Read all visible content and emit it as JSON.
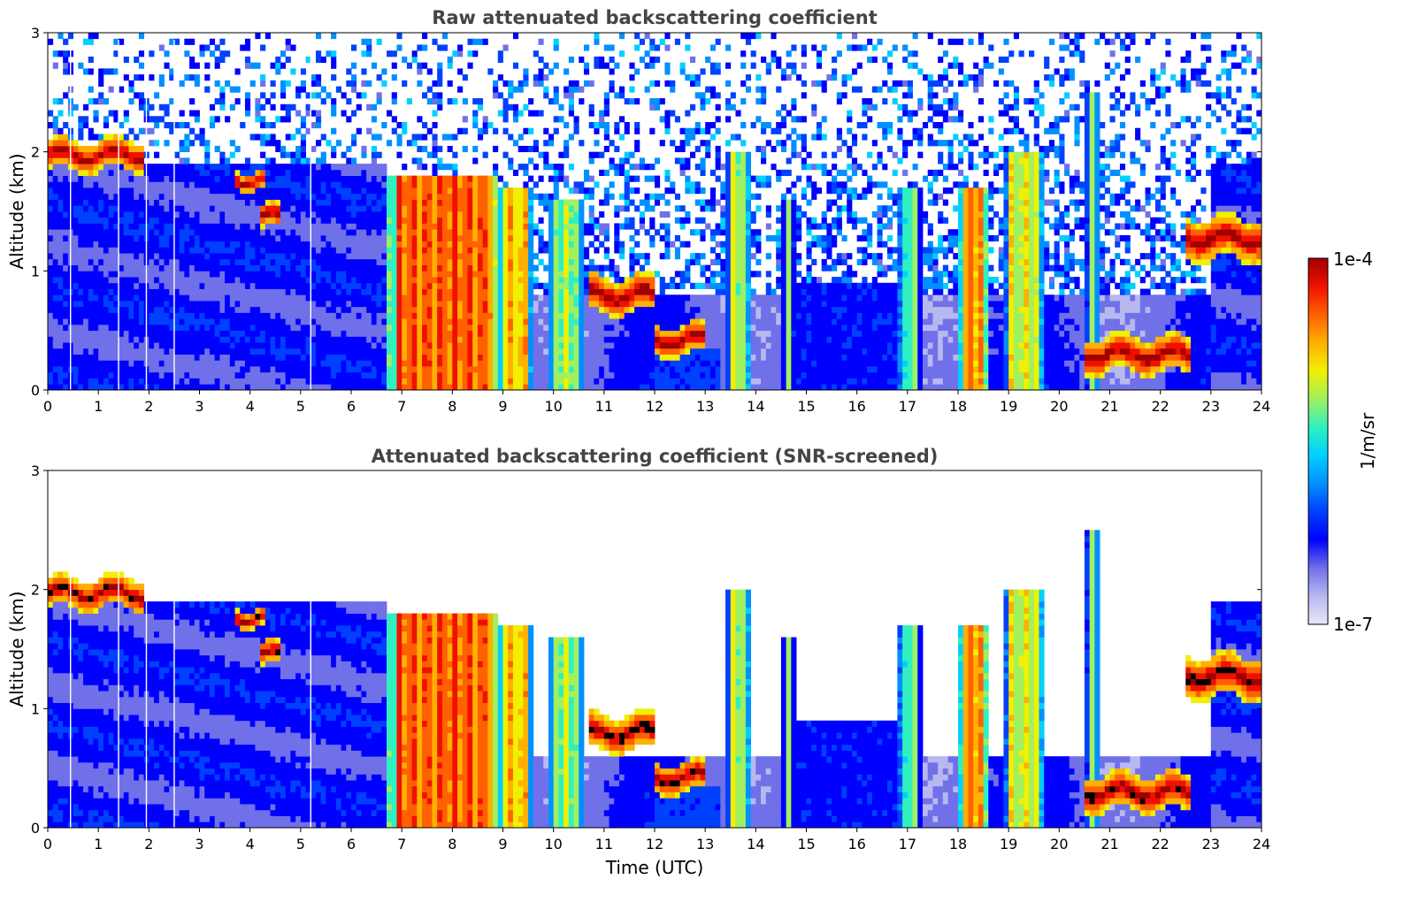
{
  "chart_data": [
    {
      "type": "heatmap",
      "title": "Raw attenuated backscattering coefficient",
      "xlabel": "",
      "ylabel": "Altitude (km)",
      "xlim": [
        0,
        24
      ],
      "ylim": [
        0,
        3
      ],
      "x_ticks": [
        "0",
        "1",
        "2",
        "3",
        "4",
        "5",
        "6",
        "7",
        "8",
        "9",
        "10",
        "11",
        "12",
        "13",
        "14",
        "15",
        "16",
        "17",
        "18",
        "19",
        "20",
        "21",
        "22",
        "23",
        "24"
      ],
      "y_ticks": [
        "0",
        "1",
        "2",
        "3"
      ],
      "screened": false,
      "vertical_gaps_hours": [
        0.45,
        1.4,
        1.95,
        2.5,
        5.2
      ]
    },
    {
      "type": "heatmap",
      "title": "Attenuated backscattering coefficient (SNR-screened)",
      "xlabel": "Time (UTC)",
      "ylabel": "Altitude (km)",
      "xlim": [
        0,
        24
      ],
      "ylim": [
        0,
        3
      ],
      "x_ticks": [
        "0",
        "1",
        "2",
        "3",
        "4",
        "5",
        "6",
        "7",
        "8",
        "9",
        "10",
        "11",
        "12",
        "13",
        "14",
        "15",
        "16",
        "17",
        "18",
        "19",
        "20",
        "21",
        "22",
        "23",
        "24"
      ],
      "y_ticks": [
        "0",
        "1",
        "2",
        "3"
      ],
      "screened": true,
      "vertical_gaps_hours": [
        0.45,
        1.4,
        1.95,
        2.5,
        5.2
      ]
    }
  ],
  "colorbar": {
    "label": "1/m/sr",
    "min_label": "1e-7",
    "max_label": "1e-4",
    "scale": "log",
    "colors": [
      "#e8e8f8",
      "#b8b8f0",
      "#7070e8",
      "#0000ff",
      "#0040ff",
      "#0090ff",
      "#00d0ff",
      "#30f0c0",
      "#a0f060",
      "#f0f000",
      "#ffb000",
      "#ff6000",
      "#f01000",
      "#a00000"
    ]
  },
  "cloud_layers": [
    {
      "t0": 0.0,
      "t1": 1.9,
      "z_base": 1.85,
      "z_top": 2.1
    },
    {
      "t0": 3.7,
      "t1": 4.3,
      "z_base": 1.7,
      "z_top": 1.85
    },
    {
      "t0": 4.2,
      "t1": 4.6,
      "z_base": 1.35,
      "z_top": 1.55
    },
    {
      "t0": 10.7,
      "t1": 12.0,
      "z_base": 0.65,
      "z_top": 0.95
    },
    {
      "t0": 12.0,
      "t1": 13.0,
      "z_base": 0.3,
      "z_top": 0.55
    },
    {
      "t0": 20.5,
      "t1": 22.6,
      "z_base": 0.15,
      "z_top": 0.45
    },
    {
      "t0": 22.5,
      "t1": 24.0,
      "z_base": 1.1,
      "z_top": 1.45
    }
  ],
  "precip_columns": [
    {
      "t0": 6.75,
      "t1": 8.9,
      "z_top": 1.8,
      "intensity": 0.82
    },
    {
      "t0": 8.9,
      "t1": 9.6,
      "z_top": 1.7,
      "intensity": 0.72
    },
    {
      "t0": 9.9,
      "t1": 10.6,
      "z_top": 1.6,
      "intensity": 0.6
    },
    {
      "t0": 13.4,
      "t1": 13.9,
      "z_top": 2.0,
      "intensity": 0.62
    },
    {
      "t0": 14.5,
      "t1": 14.8,
      "z_top": 1.6,
      "intensity": 0.55
    },
    {
      "t0": 16.8,
      "t1": 17.3,
      "z_top": 1.7,
      "intensity": 0.55
    },
    {
      "t0": 18.0,
      "t1": 18.6,
      "z_top": 1.7,
      "intensity": 0.78
    },
    {
      "t0": 18.9,
      "t1": 19.7,
      "z_top": 2.0,
      "intensity": 0.65
    },
    {
      "t0": 20.5,
      "t1": 20.8,
      "z_top": 2.5,
      "intensity": 0.6
    }
  ]
}
